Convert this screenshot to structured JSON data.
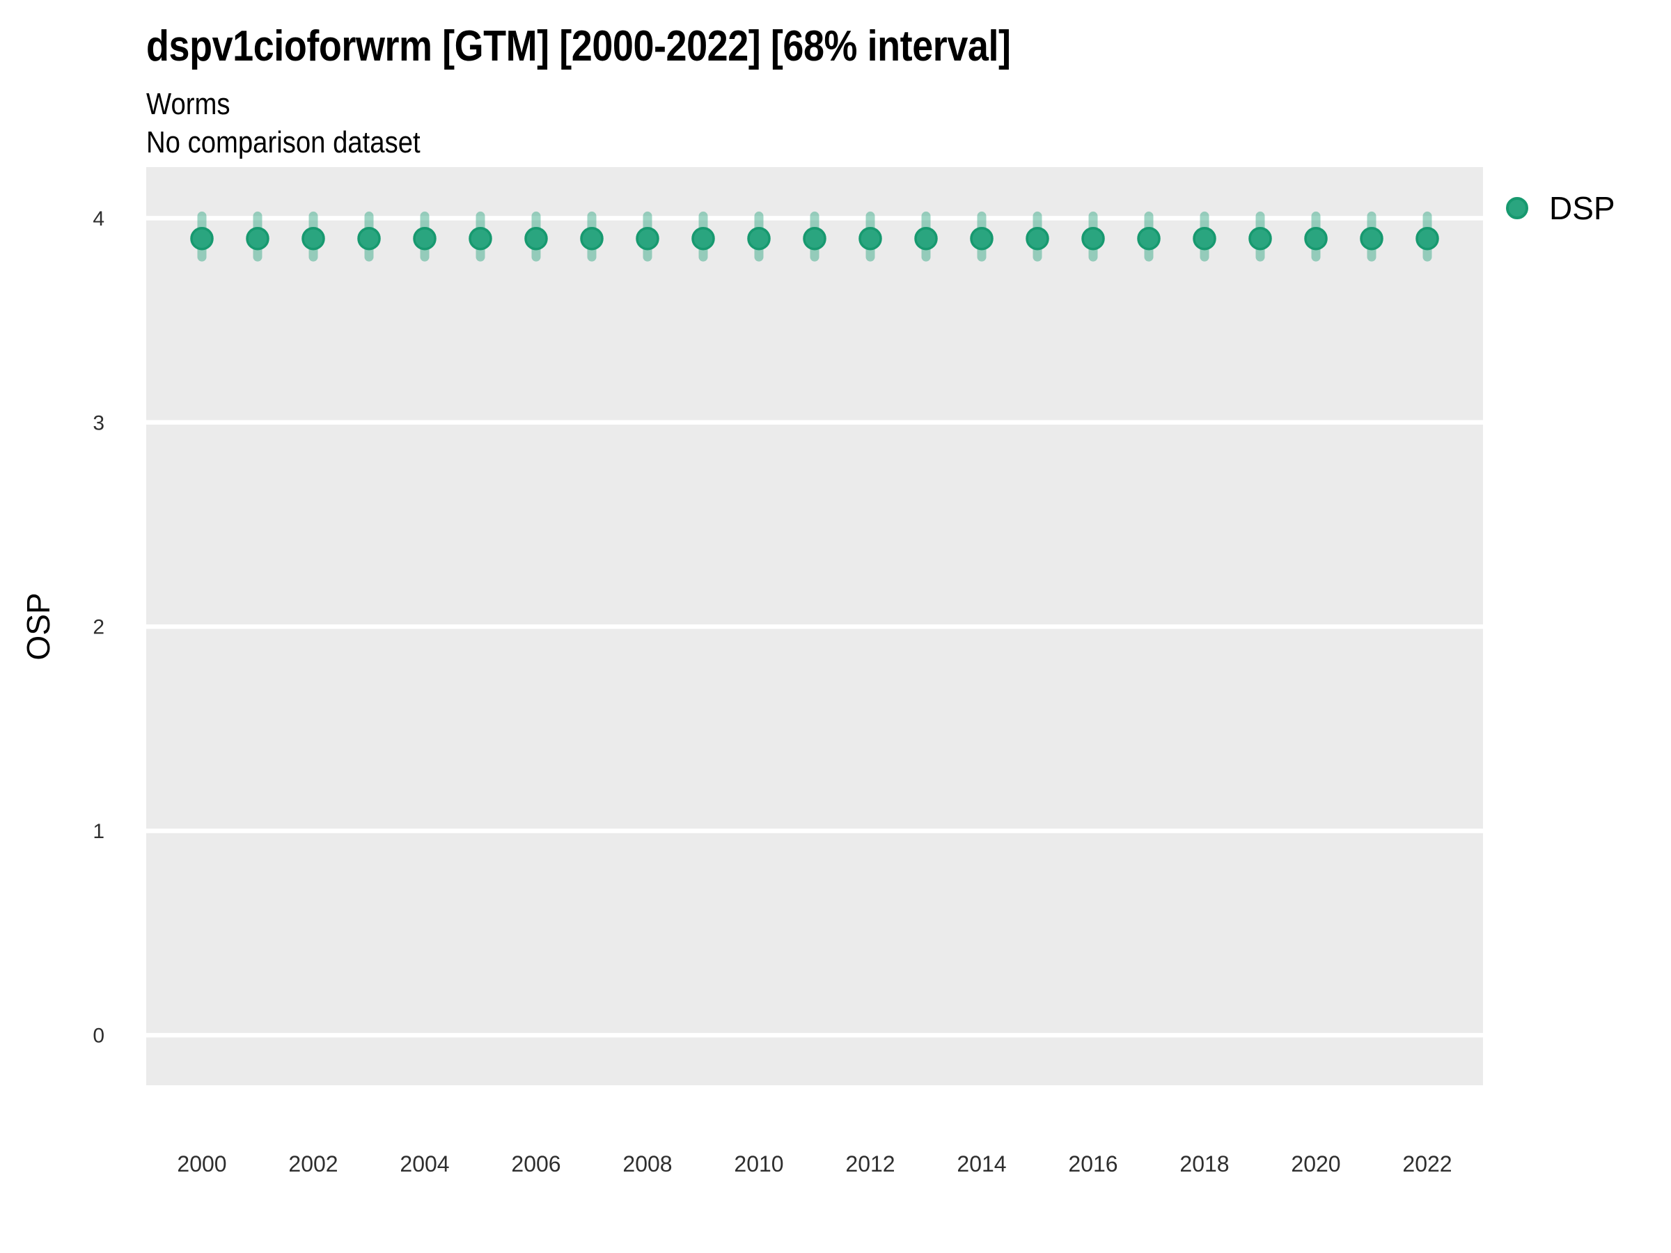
{
  "chart_data": {
    "type": "scatter",
    "title": "dspv1cioforwrm [GTM] [2000-2022] [68% interval]",
    "subtitle": "Worms",
    "note": "No comparison dataset",
    "xlabel": "",
    "ylabel": "OSP",
    "interval_level": "68%",
    "x": [
      2000,
      2001,
      2002,
      2003,
      2004,
      2005,
      2006,
      2007,
      2008,
      2009,
      2010,
      2011,
      2012,
      2013,
      2014,
      2015,
      2016,
      2017,
      2018,
      2019,
      2020,
      2021,
      2022
    ],
    "series": [
      {
        "name": "DSP",
        "values": [
          3.9,
          3.9,
          3.9,
          3.9,
          3.9,
          3.9,
          3.9,
          3.9,
          3.9,
          3.9,
          3.9,
          3.9,
          3.9,
          3.9,
          3.9,
          3.9,
          3.9,
          3.9,
          3.9,
          3.9,
          3.9,
          3.9,
          3.9
        ],
        "interval_low": [
          3.81,
          3.81,
          3.81,
          3.81,
          3.81,
          3.81,
          3.81,
          3.81,
          3.81,
          3.81,
          3.81,
          3.81,
          3.81,
          3.81,
          3.81,
          3.81,
          3.81,
          3.81,
          3.81,
          3.81,
          3.81,
          3.81,
          3.81
        ],
        "interval_high": [
          4.01,
          4.01,
          4.01,
          4.01,
          4.01,
          4.01,
          4.01,
          4.01,
          4.01,
          4.01,
          4.01,
          4.01,
          4.01,
          4.01,
          4.01,
          4.01,
          4.01,
          4.01,
          4.01,
          4.01,
          4.01,
          4.01,
          4.01
        ]
      }
    ],
    "xticks": [
      2000,
      2002,
      2004,
      2006,
      2008,
      2010,
      2012,
      2014,
      2016,
      2018,
      2020,
      2022
    ],
    "yticks": [
      0,
      1,
      2,
      3,
      4
    ],
    "xlim": [
      1999,
      2023
    ],
    "ylim": [
      -0.245,
      4.25
    ],
    "grid": "horizontal-major-only",
    "legend_position": "right"
  },
  "legend": {
    "label": "DSP"
  },
  "colors": {
    "point_fill": "#2aa57f",
    "point_stroke": "#17996f",
    "interval_bar": "rgba(42,165,127,0.45)",
    "panel_bg": "#ebebeb",
    "gridline": "#ffffff",
    "tick_text": "#2e2e2e",
    "text": "#000000"
  }
}
